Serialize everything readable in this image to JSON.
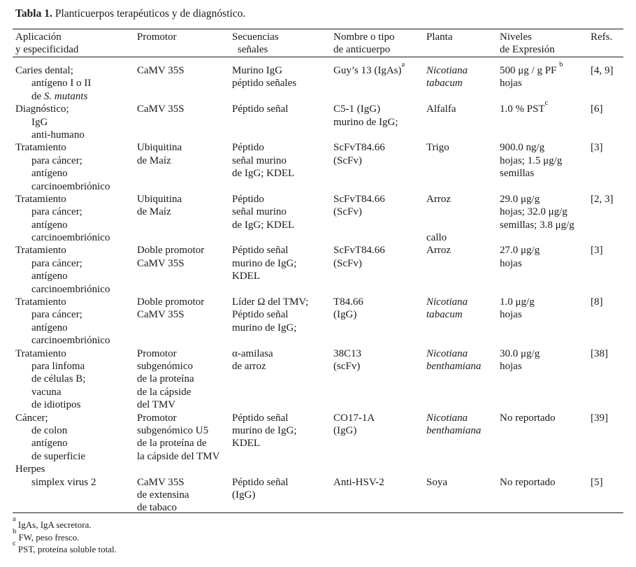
{
  "title": {
    "label": "Tabla 1.",
    "text": "Planticuerpos terapéuticos y de diagnóstico."
  },
  "table": {
    "headers": [
      [
        "Aplicación",
        "y especificidad"
      ],
      [
        "Promotor"
      ],
      [
        "Secuencias",
        "señales"
      ],
      [
        "Nombre o tipo",
        "de anticuerpo"
      ],
      [
        "Planta"
      ],
      [
        "Niveles",
        "de Expresión"
      ],
      [
        "Refs."
      ]
    ],
    "rows": [
      {
        "cells": [
          [
            "Caries dental;",
            "antígeno I o II",
            [
              {
                "t": "de "
              },
              {
                "t": "S. mutants",
                "s": "i"
              }
            ]
          ],
          [
            "CaMV 35S"
          ],
          [
            "Murino IgG",
            "péptido señales"
          ],
          [
            [
              {
                "t": "Guy’s 13 (IgAs)"
              },
              {
                "t": "a",
                "s": "sup"
              }
            ]
          ],
          [
            [
              {
                "t": "Nicotiana",
                "s": "i"
              }
            ],
            [
              {
                "t": "tabacum",
                "s": "i"
              }
            ]
          ],
          [
            [
              {
                "t": "500 μg / g PF "
              },
              {
                "t": "b",
                "s": "sup"
              }
            ],
            "hojas"
          ],
          [
            "[4, 9]"
          ]
        ]
      },
      {
        "cells": [
          [
            "Diagnóstico;",
            "IgG",
            "anti-humano"
          ],
          [
            "CaMV 35S"
          ],
          [
            "Péptido señal"
          ],
          [
            "C5-1 (IgG)",
            "murino de IgG;"
          ],
          [
            "Alfalfa"
          ],
          [
            [
              {
                "t": "1.0 % PST"
              },
              {
                "t": "c",
                "s": "sup"
              }
            ]
          ],
          [
            "[6]"
          ]
        ]
      },
      {
        "cells": [
          [
            "Tratamiento",
            "para cáncer;",
            "antígeno",
            "carcinoembriónico"
          ],
          [
            "Ubiquitina",
            "de Maíz"
          ],
          [
            "Péptido",
            "señal murino",
            "de IgG; KDEL"
          ],
          [
            "ScFvT84.66",
            "(ScFv)"
          ],
          [
            "Trigo"
          ],
          [
            "900.0 ng/g",
            "hojas; 1.5 μg/g",
            "semillas"
          ],
          [
            "[3]"
          ]
        ]
      },
      {
        "cells": [
          [
            "Tratamiento",
            "para cáncer;",
            "antígeno",
            "carcinoembriónico"
          ],
          [
            "Ubiquitina",
            "de Maíz"
          ],
          [
            "Péptido",
            "señal murino",
            "de IgG; KDEL"
          ],
          [
            "ScFvT84.66",
            "(ScFv)"
          ],
          [
            "Arroz",
            "",
            "",
            "callo"
          ],
          [
            "29.0 μg/g",
            "hojas; 32.0 μg/g",
            "semillas; 3.8 μg/g"
          ],
          [
            "[2, 3]"
          ]
        ]
      },
      {
        "cells": [
          [
            "Tratamiento",
            "para cáncer;",
            "antígeno",
            "carcinoembriónico"
          ],
          [
            "Doble promotor",
            "CaMV 35S"
          ],
          [
            "Péptido señal",
            "murino de IgG;",
            "KDEL"
          ],
          [
            "ScFvT84.66",
            "(ScFv)"
          ],
          [
            "Arroz"
          ],
          [
            "27.0 μg/g",
            "hojas"
          ],
          [
            "[3]"
          ]
        ]
      },
      {
        "cells": [
          [
            "Tratamiento",
            "para cáncer;",
            "antígeno",
            "carcinoembriónico"
          ],
          [
            "Doble promotor",
            "CaMV 35S"
          ],
          [
            "Líder Ω del TMV;",
            "Péptido señal",
            "murino de IgG;"
          ],
          [
            "T84.66",
            "(IgG)"
          ],
          [
            [
              {
                "t": "Nicotiana",
                "s": "i"
              }
            ],
            [
              {
                "t": "tabacum",
                "s": "i"
              }
            ]
          ],
          [
            "1.0 μg/g",
            "hojas"
          ],
          [
            "[8]"
          ]
        ]
      },
      {
        "cells": [
          [
            "Tratamiento",
            "para linfoma",
            "de células B;",
            "vacuna",
            "de idiotipos"
          ],
          [
            "Promotor",
            "subgenómico",
            "de la proteína",
            "de la cápside",
            "del TMV"
          ],
          [
            "α-amilasa",
            "de arroz"
          ],
          [
            "38C13",
            "(scFv)"
          ],
          [
            [
              {
                "t": "Nicotiana",
                "s": "i"
              }
            ],
            [
              {
                "t": "benthamiana",
                "s": "i"
              }
            ]
          ],
          [
            "30.0 μg/g",
            "hojas"
          ],
          [
            "[38]"
          ]
        ]
      },
      {
        "cells": [
          [
            "Cáncer;",
            "de colon",
            "antígeno",
            "de superficie"
          ],
          [
            "Promotor",
            "subgenómico U5",
            "de la proteína de",
            "la cápside del TMV"
          ],
          [
            "Péptido señal",
            "murino de IgG;",
            "KDEL"
          ],
          [
            "CO17-1A",
            "(IgG)"
          ],
          [
            [
              {
                "t": "Nicotiana",
                "s": "i"
              }
            ],
            [
              {
                "t": "benthamiana",
                "s": "i"
              }
            ]
          ],
          [
            "No reportado"
          ],
          [
            "[39]"
          ]
        ]
      },
      {
        "cells": [
          [
            "Herpes",
            "simplex virus 2"
          ],
          [
            "",
            "CaMV 35S",
            "de extensina",
            "de tabaco"
          ],
          [
            "",
            "Péptido señal",
            "(IgG)"
          ],
          [
            "",
            "Anti-HSV-2"
          ],
          [
            "",
            "Soya"
          ],
          [
            "",
            "No reportado"
          ],
          [
            "",
            "[5]"
          ]
        ]
      }
    ]
  },
  "footnotes": [
    {
      "marker": "a",
      "text": "IgAs, IgA secretora."
    },
    {
      "marker": "b",
      "text": "FW, peso fresco."
    },
    {
      "marker": "c",
      "text": "PST, proteína soluble total."
    }
  ]
}
